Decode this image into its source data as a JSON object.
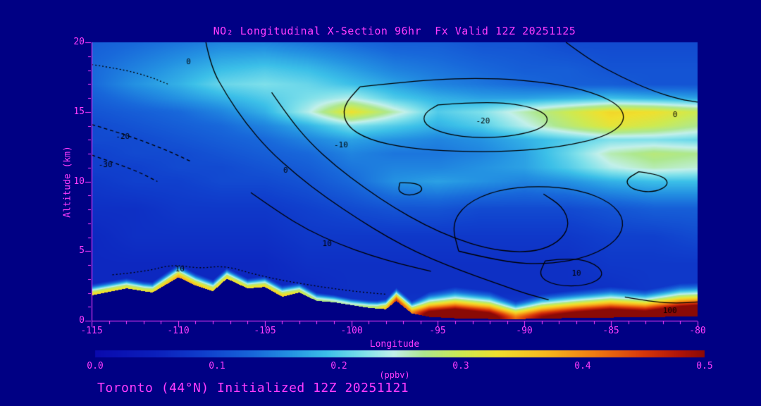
{
  "page": {
    "background": "#000084",
    "accent": "#ff3cff"
  },
  "header": {
    "title": "NO₂ Longitudinal X-Section 96hr  Fx Valid 12Z 20251125"
  },
  "footer": {
    "caption": "Toronto (44°N) Initialized 12Z 20251121"
  },
  "chart_data": {
    "type": "heatmap",
    "title": "NO2 Longitudinal X-Section 96hr Fx Valid 12Z 20251125",
    "xlabel": "Longitude",
    "ylabel": "Altitude (km)",
    "xlim": [
      -115,
      -80
    ],
    "ylim": [
      0,
      20
    ],
    "xticks": [
      -115,
      -110,
      -105,
      -100,
      -95,
      -90,
      -85,
      -80
    ],
    "yticks": [
      0,
      5,
      10,
      15,
      20
    ],
    "units": "ppbv",
    "grid_on": false,
    "colorbar": {
      "min": 0,
      "max": 0.5,
      "ticks": [
        "0.0",
        "0.1",
        "0.2",
        "0.3",
        "0.4",
        "0.5"
      ],
      "units": "(ppbv)"
    },
    "colormap": [
      [
        0.0,
        "#0a0aae"
      ],
      [
        0.05,
        "#0c20bc"
      ],
      [
        0.09,
        "#1040cd"
      ],
      [
        0.13,
        "#1868da"
      ],
      [
        0.16,
        "#2492e2"
      ],
      [
        0.19,
        "#3cc0e8"
      ],
      [
        0.22,
        "#7ee0ea"
      ],
      [
        0.245,
        "#c2f0ea"
      ],
      [
        0.27,
        "#aee88e"
      ],
      [
        0.3,
        "#cdea52"
      ],
      [
        0.33,
        "#f0e02e"
      ],
      [
        0.37,
        "#f8b81e"
      ],
      [
        0.41,
        "#f07c12"
      ],
      [
        0.45,
        "#d8380a"
      ],
      [
        0.48,
        "#b01408"
      ],
      [
        0.5,
        "#8a0a06"
      ]
    ],
    "grid": {
      "lons": [
        -115,
        -112.5,
        -110,
        -107.5,
        -105,
        -102.5,
        -100,
        -97.5,
        -95,
        -92.5,
        -90,
        -87.5,
        -85,
        -82.5,
        -80
      ],
      "alts": [
        0,
        2,
        4,
        6,
        8,
        10,
        11,
        12,
        13,
        14,
        15,
        16,
        17,
        18,
        20
      ],
      "values": [
        [
          0.06,
          0.06,
          0.06,
          0.06,
          0.06,
          0.06,
          0.07,
          0.08,
          0.1,
          0.1,
          0.1,
          0.1,
          0.1,
          0.11,
          0.12
        ],
        [
          0.06,
          0.06,
          0.06,
          0.06,
          0.06,
          0.06,
          0.07,
          0.07,
          0.07,
          0.07,
          0.07,
          0.07,
          0.07,
          0.08,
          0.08
        ],
        [
          0.06,
          0.06,
          0.06,
          0.06,
          0.06,
          0.07,
          0.07,
          0.07,
          0.07,
          0.07,
          0.07,
          0.07,
          0.08,
          0.08,
          0.08
        ],
        [
          0.06,
          0.07,
          0.07,
          0.07,
          0.07,
          0.08,
          0.08,
          0.08,
          0.08,
          0.08,
          0.08,
          0.08,
          0.09,
          0.09,
          0.1
        ],
        [
          0.07,
          0.07,
          0.08,
          0.08,
          0.08,
          0.09,
          0.1,
          0.11,
          0.11,
          0.1,
          0.1,
          0.1,
          0.11,
          0.12,
          0.12
        ],
        [
          0.08,
          0.09,
          0.09,
          0.1,
          0.1,
          0.11,
          0.13,
          0.16,
          0.17,
          0.16,
          0.15,
          0.16,
          0.18,
          0.19,
          0.19
        ],
        [
          0.09,
          0.09,
          0.1,
          0.1,
          0.11,
          0.12,
          0.14,
          0.15,
          0.15,
          0.16,
          0.17,
          0.2,
          0.24,
          0.26,
          0.25
        ],
        [
          0.09,
          0.1,
          0.1,
          0.11,
          0.12,
          0.13,
          0.15,
          0.14,
          0.14,
          0.15,
          0.17,
          0.21,
          0.26,
          0.28,
          0.27
        ],
        [
          0.1,
          0.1,
          0.11,
          0.12,
          0.13,
          0.15,
          0.17,
          0.16,
          0.15,
          0.16,
          0.18,
          0.2,
          0.22,
          0.22,
          0.21
        ],
        [
          0.1,
          0.11,
          0.12,
          0.13,
          0.15,
          0.18,
          0.22,
          0.2,
          0.18,
          0.2,
          0.24,
          0.28,
          0.32,
          0.3,
          0.27
        ],
        [
          0.11,
          0.12,
          0.13,
          0.15,
          0.18,
          0.24,
          0.33,
          0.26,
          0.2,
          0.22,
          0.26,
          0.3,
          0.34,
          0.33,
          0.3
        ],
        [
          0.12,
          0.14,
          0.16,
          0.18,
          0.2,
          0.22,
          0.24,
          0.2,
          0.18,
          0.17,
          0.17,
          0.18,
          0.19,
          0.18,
          0.17
        ],
        [
          0.13,
          0.16,
          0.18,
          0.21,
          0.22,
          0.21,
          0.19,
          0.17,
          0.15,
          0.14,
          0.13,
          0.12,
          0.12,
          0.11,
          0.11
        ],
        [
          0.13,
          0.15,
          0.17,
          0.19,
          0.2,
          0.19,
          0.17,
          0.15,
          0.14,
          0.13,
          0.12,
          0.12,
          0.11,
          0.11,
          0.11
        ],
        [
          0.12,
          0.13,
          0.14,
          0.15,
          0.15,
          0.14,
          0.13,
          0.12,
          0.12,
          0.11,
          0.11,
          0.1,
          0.1,
          0.1,
          0.1
        ]
      ]
    },
    "terrain": {
      "lons": [
        -115,
        -113,
        -111.5,
        -110,
        -109,
        -108,
        -107.2,
        -106,
        -105,
        -104,
        -103,
        -102,
        -101,
        -100,
        -99,
        -98,
        -97.4,
        -96.5,
        -95.5,
        -94,
        -92,
        -90,
        -88,
        -85,
        -82,
        -80
      ],
      "heights": [
        1.8,
        2.3,
        2.0,
        3.1,
        2.5,
        2.1,
        3.0,
        2.3,
        2.4,
        1.7,
        2.0,
        1.4,
        1.3,
        1.1,
        0.9,
        0.8,
        1.4,
        0.5,
        0.25,
        0.15,
        0.1,
        0.1,
        0.15,
        0.2,
        0.25,
        0.3
      ]
    },
    "surface_band": {
      "lons": [
        -115,
        -112,
        -110,
        -108,
        -106,
        -104,
        -102,
        -100,
        -98.5,
        -97.4,
        -96.5,
        -95.5,
        -94,
        -92,
        -90.5,
        -89,
        -87,
        -85,
        -83,
        -81,
        -80
      ],
      "amps": [
        0.34,
        0.32,
        0.38,
        0.34,
        0.33,
        0.35,
        0.28,
        0.26,
        0.3,
        0.45,
        0.4,
        0.55,
        0.6,
        0.55,
        0.42,
        0.5,
        0.55,
        0.58,
        0.55,
        0.6,
        0.62
      ],
      "widths": [
        0.45,
        0.4,
        0.5,
        0.45,
        0.4,
        0.45,
        0.35,
        0.3,
        0.35,
        0.5,
        0.5,
        0.9,
        1.1,
        1.0,
        0.7,
        0.9,
        1.0,
        1.1,
        1.0,
        1.2,
        1.2
      ]
    },
    "contours": [
      {
        "style": "solid",
        "points": [
          [
            -108.4,
            20
          ],
          [
            -108.1,
            18.2
          ],
          [
            -107.2,
            16.2
          ],
          [
            -106.1,
            14.2
          ],
          [
            -104.8,
            12.3
          ],
          [
            -103.2,
            10.5
          ],
          [
            -101.4,
            8.8
          ],
          [
            -99.6,
            7.3
          ],
          [
            -97.9,
            6.0
          ],
          [
            -96.2,
            4.9
          ],
          [
            -94.5,
            4.0
          ],
          [
            -92.8,
            3.2
          ],
          [
            -91.2,
            2.5
          ],
          [
            -89.8,
            1.9
          ],
          [
            -88.6,
            1.5
          ]
        ]
      },
      {
        "style": "solid",
        "points": [
          [
            -104.6,
            16.4
          ],
          [
            -103.6,
            14.6
          ],
          [
            -102.4,
            12.8
          ],
          [
            -100.9,
            11.1
          ],
          [
            -99.2,
            9.5
          ],
          [
            -97.5,
            8.1
          ],
          [
            -95.8,
            6.9
          ],
          [
            -94.0,
            5.9
          ],
          [
            -92.2,
            5.2
          ],
          [
            -90.4,
            4.9
          ],
          [
            -88.9,
            5.1
          ],
          [
            -87.8,
            5.9
          ],
          [
            -87.4,
            7.0
          ],
          [
            -87.8,
            8.2
          ],
          [
            -88.9,
            9.1
          ]
        ]
      },
      {
        "style": "solid",
        "points": [
          [
            -99.5,
            16.8
          ],
          [
            -96,
            17.3
          ],
          [
            -92,
            17.45
          ],
          [
            -88.5,
            17.1
          ],
          [
            -86,
            16.4
          ],
          [
            -84.4,
            15.4
          ],
          [
            -84.2,
            14.2
          ],
          [
            -85.4,
            13.2
          ],
          [
            -87.8,
            12.5
          ],
          [
            -90.8,
            12.15
          ],
          [
            -94,
            12.15
          ],
          [
            -96.8,
            12.4
          ],
          [
            -99,
            13
          ],
          [
            -100.3,
            14
          ],
          [
            -100.5,
            15.4
          ],
          [
            -99.5,
            16.8
          ]
        ]
      },
      {
        "style": "solid",
        "points": [
          [
            -95,
            15.5
          ],
          [
            -92.4,
            15.75
          ],
          [
            -90,
            15.5
          ],
          [
            -88.6,
            14.8
          ],
          [
            -88.8,
            13.9
          ],
          [
            -90.4,
            13.3
          ],
          [
            -92.6,
            13.1
          ],
          [
            -94.6,
            13.4
          ],
          [
            -95.8,
            14.1
          ],
          [
            -95.8,
            14.9
          ],
          [
            -95,
            15.5
          ]
        ]
      },
      {
        "style": "solid",
        "points": [
          [
            -87.6,
            20
          ],
          [
            -86.2,
            18.7
          ],
          [
            -84.4,
            17.5
          ],
          [
            -82.6,
            16.5
          ],
          [
            -81,
            15.9
          ],
          [
            -80,
            15.7
          ]
        ]
      },
      {
        "style": "solid",
        "points": [
          [
            -83.4,
            10.7
          ],
          [
            -82.1,
            10.5
          ],
          [
            -81.6,
            9.8
          ],
          [
            -82.5,
            9.2
          ],
          [
            -83.8,
            9.4
          ],
          [
            -84.2,
            10.1
          ],
          [
            -83.4,
            10.7
          ]
        ]
      },
      {
        "style": "solid",
        "points": [
          [
            -105.8,
            9.2
          ],
          [
            -104.2,
            7.8
          ],
          [
            -102.5,
            6.5
          ],
          [
            -100.7,
            5.5
          ],
          [
            -98.9,
            4.7
          ],
          [
            -97.1,
            4.05
          ],
          [
            -95.4,
            3.55
          ]
        ]
      },
      {
        "style": "dotted",
        "points": [
          [
            -113.8,
            3.3
          ],
          [
            -112,
            3.5
          ],
          [
            -110.3,
            4.05
          ],
          [
            -108.8,
            3.75
          ],
          [
            -107.3,
            3.95
          ],
          [
            -105.8,
            3.4
          ],
          [
            -104.2,
            2.95
          ],
          [
            -102.6,
            2.6
          ],
          [
            -101,
            2.3
          ],
          [
            -99.4,
            2.05
          ],
          [
            -98,
            1.9
          ]
        ]
      },
      {
        "style": "dashed",
        "points": [
          [
            -115,
            14.1
          ],
          [
            -113.4,
            13.5
          ],
          [
            -111.8,
            12.8
          ],
          [
            -110.4,
            12.1
          ],
          [
            -109.2,
            11.4
          ]
        ]
      },
      {
        "style": "dashed",
        "points": [
          [
            -115,
            11.9
          ],
          [
            -113.6,
            11.3
          ],
          [
            -112.3,
            10.7
          ],
          [
            -111.2,
            10.0
          ]
        ]
      },
      {
        "style": "solid",
        "points": [
          [
            -88.8,
            4.3
          ],
          [
            -87.2,
            4.55
          ],
          [
            -85.8,
            4.05
          ],
          [
            -85.4,
            3.2
          ],
          [
            -86.4,
            2.5
          ],
          [
            -88.2,
            2.5
          ],
          [
            -89.2,
            3.2
          ],
          [
            -88.8,
            4.3
          ]
        ]
      },
      {
        "style": "solid",
        "points": [
          [
            -84.2,
            1.7
          ],
          [
            -82.6,
            1.35
          ],
          [
            -81.2,
            1.25
          ],
          [
            -80,
            1.35
          ]
        ]
      },
      {
        "style": "solid",
        "points": [
          [
            -97.2,
            9.9
          ],
          [
            -96.2,
            9.95
          ],
          [
            -95.8,
            9.35
          ],
          [
            -96.6,
            8.95
          ],
          [
            -97.3,
            9.25
          ],
          [
            -97.2,
            9.9
          ]
        ]
      },
      {
        "style": "solid",
        "points": [
          [
            -93.8,
            5.0
          ],
          [
            -91.2,
            4.2
          ],
          [
            -88.6,
            4.05
          ],
          [
            -86.2,
            4.6
          ],
          [
            -84.6,
            5.8
          ],
          [
            -84.2,
            7.2
          ],
          [
            -85.0,
            8.5
          ],
          [
            -86.8,
            9.4
          ],
          [
            -89.2,
            9.7
          ],
          [
            -91.6,
            9.4
          ],
          [
            -93.4,
            8.4
          ],
          [
            -94.2,
            6.9
          ],
          [
            -93.8,
            5.0
          ]
        ]
      },
      {
        "style": "dotted",
        "points": [
          [
            -115,
            18.4
          ],
          [
            -113.4,
            18.1
          ],
          [
            -111.8,
            17.6
          ],
          [
            -110.6,
            17.0
          ]
        ]
      }
    ],
    "contour_labels": [
      {
        "text": "0",
        "lon": -109.4,
        "alt": 18.6
      },
      {
        "text": "-10",
        "lon": -100.6,
        "alt": 12.6
      },
      {
        "text": "0",
        "lon": -103.8,
        "alt": 10.8
      },
      {
        "text": "10",
        "lon": -101.4,
        "alt": 5.5
      },
      {
        "text": "10",
        "lon": -109.9,
        "alt": 3.7
      },
      {
        "text": "-20",
        "lon": -113.2,
        "alt": 13.2
      },
      {
        "text": "-30",
        "lon": -114.2,
        "alt": 11.2
      },
      {
        "text": "0",
        "lon": -81.3,
        "alt": 14.8
      },
      {
        "text": "10",
        "lon": -87.0,
        "alt": 3.4
      },
      {
        "text": "100",
        "lon": -81.6,
        "alt": 0.7
      },
      {
        "text": "-20",
        "lon": -92.4,
        "alt": 14.3
      }
    ]
  }
}
